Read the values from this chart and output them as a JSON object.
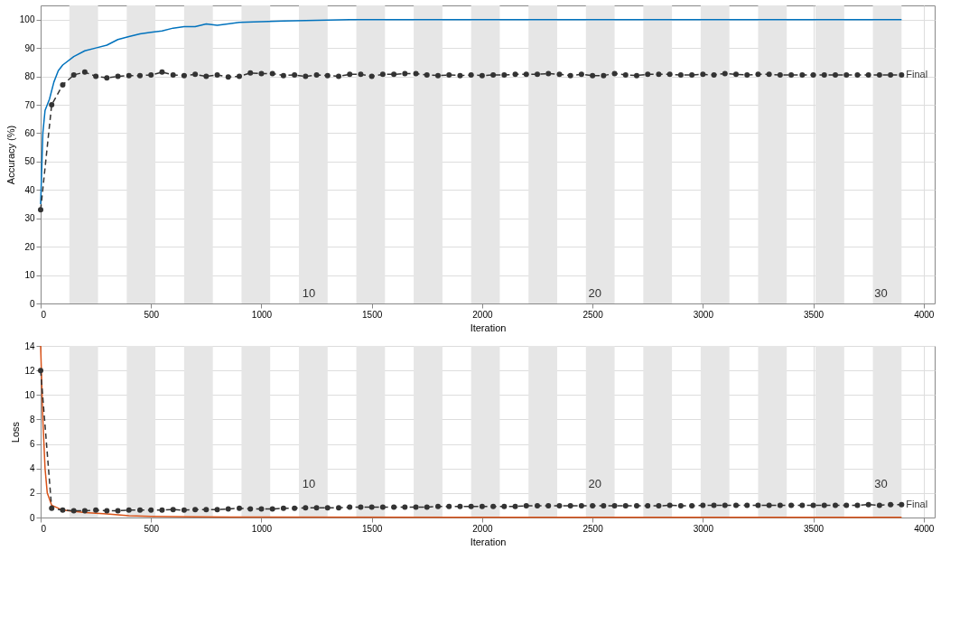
{
  "chart_data": [
    {
      "type": "line",
      "xlabel": "Iteration",
      "ylabel": "Accuracy (%)",
      "xlim": [
        0,
        4050
      ],
      "xticks": [
        0,
        500,
        1000,
        1500,
        2000,
        2500,
        3000,
        3500,
        4000
      ],
      "ylim": [
        0,
        105
      ],
      "yticks": [
        0,
        10,
        20,
        30,
        40,
        50,
        60,
        70,
        80,
        90,
        100
      ],
      "grid": true,
      "bands": [
        {
          "axis": "x",
          "from": 130,
          "to": 260,
          "color": "#e6e6e6"
        },
        {
          "axis": "x",
          "from": 390,
          "to": 520,
          "color": "#e6e6e6"
        },
        {
          "axis": "x",
          "from": 650,
          "to": 780,
          "color": "#e6e6e6"
        },
        {
          "axis": "x",
          "from": 910,
          "to": 1040,
          "color": "#e6e6e6"
        },
        {
          "axis": "x",
          "from": 1170,
          "to": 1300,
          "color": "#e6e6e6"
        },
        {
          "axis": "x",
          "from": 1430,
          "to": 1560,
          "color": "#e6e6e6"
        },
        {
          "axis": "x",
          "from": 1690,
          "to": 1820,
          "color": "#e6e6e6"
        },
        {
          "axis": "x",
          "from": 1950,
          "to": 2080,
          "color": "#e6e6e6"
        },
        {
          "axis": "x",
          "from": 2210,
          "to": 2340,
          "color": "#e6e6e6"
        },
        {
          "axis": "x",
          "from": 2470,
          "to": 2600,
          "color": "#e6e6e6"
        },
        {
          "axis": "x",
          "from": 2730,
          "to": 2860,
          "color": "#e6e6e6"
        },
        {
          "axis": "x",
          "from": 2990,
          "to": 3120,
          "color": "#e6e6e6"
        },
        {
          "axis": "x",
          "from": 3250,
          "to": 3380,
          "color": "#e6e6e6"
        },
        {
          "axis": "x",
          "from": 3510,
          "to": 3640,
          "color": "#e6e6e6"
        },
        {
          "axis": "x",
          "from": 3770,
          "to": 3900,
          "color": "#e6e6e6"
        }
      ],
      "annotations": [
        "10",
        "20",
        "30",
        {
          "text": "Final",
          "x": 3900,
          "y": 80.5
        }
      ],
      "series": [
        {
          "color": "#0072bd",
          "marker": "none",
          "line_style": "solid",
          "x": [
            0,
            10,
            20,
            40,
            60,
            80,
            100,
            150,
            200,
            250,
            300,
            350,
            400,
            450,
            500,
            550,
            600,
            650,
            700,
            750,
            800,
            900,
            1000,
            1100,
            1200,
            1300,
            1400,
            1600,
            1800,
            2000,
            2500,
            3000,
            3500,
            3900
          ],
          "values": [
            35,
            60,
            68,
            72,
            78,
            82,
            84,
            87,
            89,
            90,
            91,
            93,
            94,
            95,
            95.5,
            96,
            97,
            97.5,
            97.5,
            98.5,
            98,
            99,
            99.3,
            99.5,
            99.7,
            99.8,
            100,
            100,
            100,
            100,
            100,
            100,
            100,
            100
          ]
        },
        {
          "color": "#333333",
          "marker": "circle",
          "line_style": "dashed",
          "x": [
            0,
            50,
            100,
            150,
            200,
            250,
            300,
            350,
            400,
            450,
            500,
            550,
            600,
            650,
            700,
            750,
            800,
            850,
            900,
            950,
            1000,
            1050,
            1100,
            1150,
            1200,
            1250,
            1300,
            1350,
            1400,
            1450,
            1500,
            1550,
            1600,
            1650,
            1700,
            1750,
            1800,
            1850,
            1900,
            1950,
            2000,
            2050,
            2100,
            2150,
            2200,
            2250,
            2300,
            2350,
            2400,
            2450,
            2500,
            2550,
            2600,
            2650,
            2700,
            2750,
            2800,
            2850,
            2900,
            2950,
            3000,
            3050,
            3100,
            3150,
            3200,
            3250,
            3300,
            3350,
            3400,
            3450,
            3500,
            3550,
            3600,
            3650,
            3700,
            3750,
            3800,
            3850,
            3900
          ],
          "values": [
            33,
            70,
            77,
            80.5,
            81.5,
            80,
            79.5,
            80,
            80.3,
            80.3,
            80.5,
            81.5,
            80.5,
            80.3,
            80.7,
            80,
            80.5,
            79.8,
            80,
            81.2,
            81,
            81,
            80.3,
            80.5,
            80,
            80.5,
            80.3,
            80,
            80.7,
            80.7,
            80,
            80.7,
            80.7,
            81,
            81,
            80.5,
            80.3,
            80.5,
            80.3,
            80.5,
            80.3,
            80.5,
            80.5,
            80.7,
            80.7,
            80.7,
            81,
            80.7,
            80.3,
            80.7,
            80.3,
            80.3,
            81,
            80.5,
            80.3,
            80.7,
            80.7,
            80.7,
            80.5,
            80.5,
            80.7,
            80.5,
            81,
            80.7,
            80.5,
            80.7,
            80.7,
            80.5,
            80.5,
            80.5,
            80.5,
            80.5,
            80.5,
            80.5,
            80.5,
            80.5,
            80.5,
            80.5,
            80.5
          ]
        }
      ]
    },
    {
      "type": "line",
      "xlabel": "Iteration",
      "ylabel": "Loss",
      "xlim": [
        0,
        4050
      ],
      "xticks": [
        0,
        500,
        1000,
        1500,
        2000,
        2500,
        3000,
        3500,
        4000
      ],
      "ylim": [
        0,
        14
      ],
      "yticks": [
        0,
        2,
        4,
        6,
        8,
        10,
        12,
        14
      ],
      "grid": true,
      "bands": [
        {
          "axis": "x",
          "from": 130,
          "to": 260,
          "color": "#e6e6e6"
        },
        {
          "axis": "x",
          "from": 390,
          "to": 520,
          "color": "#e6e6e6"
        },
        {
          "axis": "x",
          "from": 650,
          "to": 780,
          "color": "#e6e6e6"
        },
        {
          "axis": "x",
          "from": 910,
          "to": 1040,
          "color": "#e6e6e6"
        },
        {
          "axis": "x",
          "from": 1170,
          "to": 1300,
          "color": "#e6e6e6"
        },
        {
          "axis": "x",
          "from": 1430,
          "to": 1560,
          "color": "#e6e6e6"
        },
        {
          "axis": "x",
          "from": 1690,
          "to": 1820,
          "color": "#e6e6e6"
        },
        {
          "axis": "x",
          "from": 1950,
          "to": 2080,
          "color": "#e6e6e6"
        },
        {
          "axis": "x",
          "from": 2210,
          "to": 2340,
          "color": "#e6e6e6"
        },
        {
          "axis": "x",
          "from": 2470,
          "to": 2600,
          "color": "#e6e6e6"
        },
        {
          "axis": "x",
          "from": 2730,
          "to": 2860,
          "color": "#e6e6e6"
        },
        {
          "axis": "x",
          "from": 2990,
          "to": 3120,
          "color": "#e6e6e6"
        },
        {
          "axis": "x",
          "from": 3250,
          "to": 3380,
          "color": "#e6e6e6"
        },
        {
          "axis": "x",
          "from": 3510,
          "to": 3640,
          "color": "#e6e6e6"
        },
        {
          "axis": "x",
          "from": 3770,
          "to": 3900,
          "color": "#e6e6e6"
        }
      ],
      "annotations": [
        "10",
        "20",
        "30",
        {
          "text": "Final",
          "x": 3900,
          "y": 1.05
        }
      ],
      "series": [
        {
          "color": "#d95319",
          "marker": "none",
          "line_style": "solid",
          "x": [
            0,
            10,
            20,
            30,
            50,
            100,
            200,
            300,
            400,
            500,
            700,
            1000,
            2000,
            3000,
            3900
          ],
          "values": [
            14,
            8,
            4,
            2,
            1,
            0.6,
            0.4,
            0.3,
            0.15,
            0.1,
            0.05,
            0.03,
            0.01,
            0.01,
            0.01
          ]
        },
        {
          "color": "#333333",
          "marker": "circle",
          "line_style": "dashed",
          "x": [
            0,
            50,
            100,
            150,
            200,
            250,
            300,
            350,
            400,
            450,
            500,
            550,
            600,
            650,
            700,
            750,
            800,
            850,
            900,
            950,
            1000,
            1050,
            1100,
            1150,
            1200,
            1250,
            1300,
            1350,
            1400,
            1450,
            1500,
            1550,
            1600,
            1650,
            1700,
            1750,
            1800,
            1850,
            1900,
            1950,
            2000,
            2050,
            2100,
            2150,
            2200,
            2250,
            2300,
            2350,
            2400,
            2450,
            2500,
            2550,
            2600,
            2650,
            2700,
            2750,
            2800,
            2850,
            2900,
            2950,
            3000,
            3050,
            3100,
            3150,
            3200,
            3250,
            3300,
            3350,
            3400,
            3450,
            3500,
            3550,
            3600,
            3650,
            3700,
            3750,
            3800,
            3850,
            3900
          ],
          "values": [
            12,
            0.75,
            0.6,
            0.55,
            0.55,
            0.6,
            0.55,
            0.55,
            0.6,
            0.6,
            0.6,
            0.6,
            0.65,
            0.6,
            0.65,
            0.65,
            0.65,
            0.7,
            0.75,
            0.7,
            0.7,
            0.7,
            0.75,
            0.75,
            0.8,
            0.8,
            0.8,
            0.8,
            0.85,
            0.85,
            0.85,
            0.85,
            0.85,
            0.85,
            0.85,
            0.85,
            0.9,
            0.9,
            0.9,
            0.9,
            0.9,
            0.9,
            0.9,
            0.9,
            0.95,
            0.95,
            0.95,
            0.95,
            0.95,
            0.95,
            0.95,
            0.95,
            0.95,
            0.95,
            0.95,
            0.95,
            0.95,
            1.0,
            0.95,
            0.95,
            1.0,
            1.0,
            1.0,
            1.0,
            1.0,
            1.0,
            1.0,
            1.0,
            1.0,
            1.0,
            1.0,
            1.0,
            1.0,
            1.0,
            1.0,
            1.05,
            1.0,
            1.05,
            1.05
          ]
        }
      ]
    }
  ]
}
